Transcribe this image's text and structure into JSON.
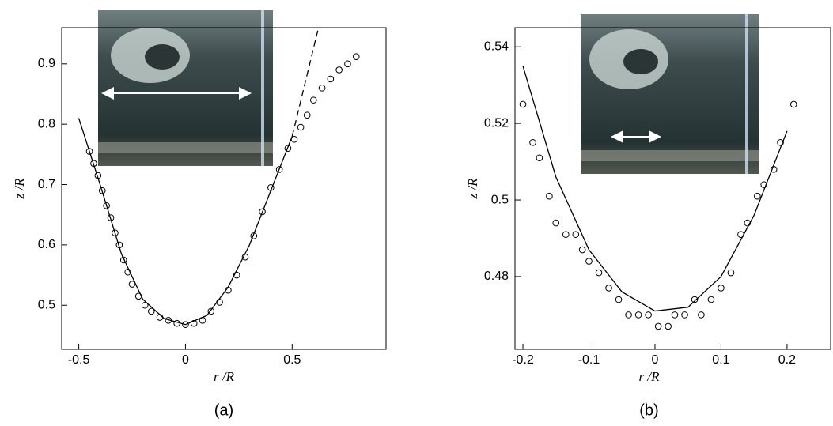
{
  "chart_data": [
    {
      "type": "scatter",
      "x_label": "r /R",
      "y_label": "z /R",
      "caption": "(a)",
      "xlim": [
        -0.58,
        0.94
      ],
      "ylim": [
        0.427,
        0.96
      ],
      "xticks": [
        -0.5,
        0,
        0.5
      ],
      "yticks": [
        0.5,
        0.6,
        0.7,
        0.8,
        0.9
      ],
      "series": [
        {
          "mode": "markers",
          "color": "#000000",
          "x": [
            -0.45,
            -0.43,
            -0.41,
            -0.39,
            -0.37,
            -0.35,
            -0.33,
            -0.31,
            -0.29,
            -0.27,
            -0.25,
            -0.22,
            -0.19,
            -0.16,
            -0.12,
            -0.08,
            -0.04,
            0,
            0.04,
            0.08,
            0.12,
            0.16,
            0.2,
            0.24,
            0.28,
            0.32,
            0.36,
            0.4,
            0.44,
            0.48,
            0.51,
            0.54,
            0.57,
            0.6,
            0.64,
            0.68,
            0.72,
            0.76,
            0.8
          ],
          "values": [
            0.755,
            0.735,
            0.715,
            0.69,
            0.665,
            0.645,
            0.62,
            0.6,
            0.575,
            0.555,
            0.535,
            0.515,
            0.5,
            0.49,
            0.48,
            0.475,
            0.47,
            0.468,
            0.47,
            0.475,
            0.49,
            0.505,
            0.525,
            0.55,
            0.58,
            0.615,
            0.655,
            0.695,
            0.725,
            0.76,
            0.775,
            0.795,
            0.815,
            0.84,
            0.86,
            0.875,
            0.89,
            0.9,
            0.912
          ]
        },
        {
          "mode": "line",
          "dash": false,
          "color": "#000000",
          "x": [
            -0.5,
            -0.4,
            -0.3,
            -0.2,
            -0.1,
            0,
            0.1,
            0.2,
            0.3,
            0.4,
            0.5
          ],
          "values": [
            0.81,
            0.7,
            0.585,
            0.51,
            0.478,
            0.468,
            0.483,
            0.53,
            0.6,
            0.69,
            0.78
          ]
        },
        {
          "mode": "line",
          "dash": true,
          "color": "#000000",
          "x": [
            0.5,
            0.62
          ],
          "values": [
            0.78,
            0.955
          ]
        }
      ]
    },
    {
      "type": "scatter",
      "x_label": "r /R",
      "y_label": "z /R",
      "caption": "(b)",
      "xlim": [
        -0.212,
        0.266
      ],
      "ylim": [
        0.461,
        0.545
      ],
      "xticks": [
        -0.2,
        -0.1,
        0,
        0.1,
        0.2
      ],
      "yticks": [
        0.48,
        0.5,
        0.52,
        0.54
      ],
      "series": [
        {
          "mode": "markers",
          "color": "#000000",
          "x": [
            -0.2,
            -0.185,
            -0.175,
            -0.16,
            -0.15,
            -0.135,
            -0.12,
            -0.11,
            -0.1,
            -0.085,
            -0.07,
            -0.055,
            -0.04,
            -0.025,
            -0.01,
            0.005,
            0.02,
            0.03,
            0.045,
            0.06,
            0.07,
            0.085,
            0.1,
            0.115,
            0.13,
            0.14,
            0.155,
            0.165,
            0.18,
            0.19,
            0.21
          ],
          "values": [
            0.525,
            0.515,
            0.511,
            0.501,
            0.494,
            0.491,
            0.491,
            0.487,
            0.484,
            0.481,
            0.477,
            0.474,
            0.47,
            0.47,
            0.47,
            0.467,
            0.467,
            0.47,
            0.47,
            0.474,
            0.47,
            0.474,
            0.477,
            0.481,
            0.491,
            0.494,
            0.501,
            0.504,
            0.508,
            0.515,
            0.525
          ]
        },
        {
          "mode": "line",
          "dash": false,
          "color": "#000000",
          "x": [
            -0.2,
            -0.15,
            -0.1,
            -0.05,
            0,
            0.05,
            0.1,
            0.15,
            0.2
          ],
          "values": [
            0.535,
            0.506,
            0.487,
            0.476,
            0.471,
            0.472,
            0.48,
            0.496,
            0.518
          ]
        }
      ]
    }
  ]
}
